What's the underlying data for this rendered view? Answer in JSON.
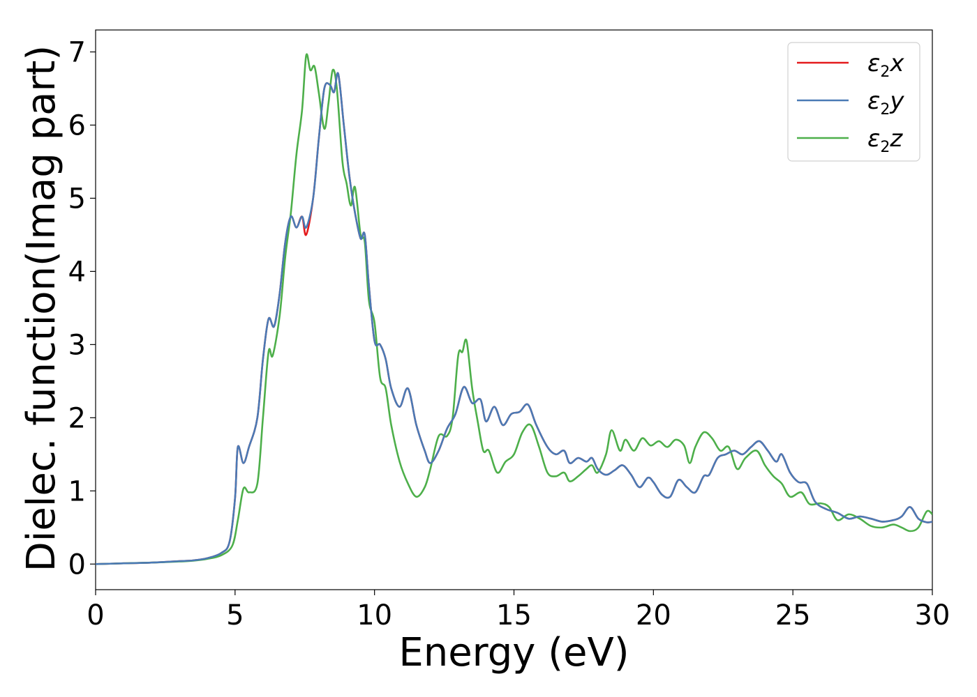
{
  "chart_data": {
    "type": "line",
    "xlabel": "Energy (eV)",
    "ylabel": "Dielec. function(Imag part)",
    "xlim": [
      0,
      30
    ],
    "ylim": [
      -0.35,
      7.3
    ],
    "xticks": [
      0,
      5,
      10,
      15,
      20,
      25,
      30
    ],
    "yticks": [
      0,
      1,
      2,
      3,
      4,
      5,
      6,
      7
    ],
    "grid": false,
    "legend_position": "top-right",
    "series": [
      {
        "name": "ε2x",
        "legend": {
          "base": "ε",
          "sub": "2",
          "axis": "x"
        },
        "color": "#e41a1c",
        "points": [
          [
            0,
            0
          ],
          [
            1,
            0.01
          ],
          [
            2,
            0.02
          ],
          [
            3,
            0.04
          ],
          [
            3.5,
            0.05
          ],
          [
            4,
            0.08
          ],
          [
            4.5,
            0.15
          ],
          [
            4.8,
            0.3
          ],
          [
            5,
            0.9
          ],
          [
            5.1,
            1.6
          ],
          [
            5.3,
            1.38
          ],
          [
            5.5,
            1.6
          ],
          [
            5.8,
            2.0
          ],
          [
            6.0,
            2.8
          ],
          [
            6.2,
            3.35
          ],
          [
            6.4,
            3.25
          ],
          [
            6.6,
            3.7
          ],
          [
            6.8,
            4.4
          ],
          [
            7.0,
            4.75
          ],
          [
            7.2,
            4.6
          ],
          [
            7.4,
            4.75
          ],
          [
            7.55,
            4.5
          ],
          [
            7.8,
            5.0
          ],
          [
            8.0,
            5.8
          ],
          [
            8.2,
            6.5
          ],
          [
            8.4,
            6.55
          ],
          [
            8.55,
            6.45
          ],
          [
            8.7,
            6.7
          ],
          [
            8.9,
            6.0
          ],
          [
            9.1,
            5.3
          ],
          [
            9.3,
            4.8
          ],
          [
            9.5,
            4.45
          ],
          [
            9.65,
            4.5
          ],
          [
            9.8,
            3.8
          ],
          [
            10.0,
            3.05
          ],
          [
            10.2,
            3.0
          ],
          [
            10.4,
            2.8
          ],
          [
            10.6,
            2.4
          ],
          [
            10.9,
            2.15
          ],
          [
            11.2,
            2.4
          ],
          [
            11.5,
            1.9
          ],
          [
            11.8,
            1.55
          ],
          [
            12.0,
            1.38
          ],
          [
            12.3,
            1.55
          ],
          [
            12.6,
            1.85
          ],
          [
            12.9,
            2.05
          ],
          [
            13.2,
            2.42
          ],
          [
            13.5,
            2.2
          ],
          [
            13.8,
            2.25
          ],
          [
            14.0,
            1.95
          ],
          [
            14.3,
            2.15
          ],
          [
            14.6,
            1.9
          ],
          [
            14.9,
            2.05
          ],
          [
            15.2,
            2.08
          ],
          [
            15.5,
            2.18
          ],
          [
            15.8,
            1.9
          ],
          [
            16.2,
            1.6
          ],
          [
            16.5,
            1.5
          ],
          [
            16.8,
            1.55
          ],
          [
            17.0,
            1.38
          ],
          [
            17.3,
            1.45
          ],
          [
            17.6,
            1.4
          ],
          [
            17.8,
            1.45
          ],
          [
            18.0,
            1.3
          ],
          [
            18.3,
            1.22
          ],
          [
            18.6,
            1.28
          ],
          [
            18.9,
            1.35
          ],
          [
            19.2,
            1.22
          ],
          [
            19.5,
            1.05
          ],
          [
            19.8,
            1.18
          ],
          [
            20.0,
            1.12
          ],
          [
            20.3,
            0.95
          ],
          [
            20.6,
            0.92
          ],
          [
            20.9,
            1.15
          ],
          [
            21.2,
            1.05
          ],
          [
            21.5,
            0.98
          ],
          [
            21.8,
            1.2
          ],
          [
            22.0,
            1.22
          ],
          [
            22.3,
            1.45
          ],
          [
            22.6,
            1.5
          ],
          [
            22.9,
            1.55
          ],
          [
            23.2,
            1.5
          ],
          [
            23.5,
            1.6
          ],
          [
            23.8,
            1.68
          ],
          [
            24.1,
            1.55
          ],
          [
            24.4,
            1.4
          ],
          [
            24.6,
            1.5
          ],
          [
            24.9,
            1.25
          ],
          [
            25.2,
            1.12
          ],
          [
            25.5,
            1.1
          ],
          [
            25.8,
            0.85
          ],
          [
            26.2,
            0.75
          ],
          [
            26.6,
            0.7
          ],
          [
            27.0,
            0.62
          ],
          [
            27.4,
            0.65
          ],
          [
            27.8,
            0.62
          ],
          [
            28.2,
            0.58
          ],
          [
            28.6,
            0.6
          ],
          [
            28.9,
            0.65
          ],
          [
            29.2,
            0.78
          ],
          [
            29.5,
            0.62
          ],
          [
            29.8,
            0.57
          ],
          [
            30,
            0.58
          ]
        ]
      },
      {
        "name": "ε2y",
        "legend": {
          "base": "ε",
          "sub": "2",
          "axis": "y"
        },
        "color": "#4a7ab5",
        "points": [
          [
            0,
            0
          ],
          [
            1,
            0.01
          ],
          [
            2,
            0.02
          ],
          [
            3,
            0.04
          ],
          [
            3.5,
            0.05
          ],
          [
            4,
            0.08
          ],
          [
            4.5,
            0.15
          ],
          [
            4.8,
            0.3
          ],
          [
            5,
            0.9
          ],
          [
            5.1,
            1.6
          ],
          [
            5.3,
            1.38
          ],
          [
            5.5,
            1.6
          ],
          [
            5.8,
            2.0
          ],
          [
            6.0,
            2.8
          ],
          [
            6.2,
            3.35
          ],
          [
            6.4,
            3.25
          ],
          [
            6.6,
            3.7
          ],
          [
            6.8,
            4.4
          ],
          [
            7.0,
            4.75
          ],
          [
            7.2,
            4.6
          ],
          [
            7.4,
            4.75
          ],
          [
            7.55,
            4.6
          ],
          [
            7.8,
            5.0
          ],
          [
            8.0,
            5.8
          ],
          [
            8.2,
            6.5
          ],
          [
            8.4,
            6.55
          ],
          [
            8.55,
            6.45
          ],
          [
            8.7,
            6.7
          ],
          [
            8.9,
            6.0
          ],
          [
            9.1,
            5.3
          ],
          [
            9.3,
            4.8
          ],
          [
            9.5,
            4.45
          ],
          [
            9.65,
            4.5
          ],
          [
            9.8,
            3.8
          ],
          [
            10.0,
            3.05
          ],
          [
            10.2,
            3.0
          ],
          [
            10.4,
            2.8
          ],
          [
            10.6,
            2.4
          ],
          [
            10.9,
            2.15
          ],
          [
            11.2,
            2.4
          ],
          [
            11.5,
            1.9
          ],
          [
            11.8,
            1.55
          ],
          [
            12.0,
            1.38
          ],
          [
            12.3,
            1.55
          ],
          [
            12.6,
            1.85
          ],
          [
            12.9,
            2.05
          ],
          [
            13.2,
            2.42
          ],
          [
            13.5,
            2.2
          ],
          [
            13.8,
            2.25
          ],
          [
            14.0,
            1.95
          ],
          [
            14.3,
            2.15
          ],
          [
            14.6,
            1.9
          ],
          [
            14.9,
            2.05
          ],
          [
            15.2,
            2.08
          ],
          [
            15.5,
            2.18
          ],
          [
            15.8,
            1.9
          ],
          [
            16.2,
            1.6
          ],
          [
            16.5,
            1.5
          ],
          [
            16.8,
            1.55
          ],
          [
            17.0,
            1.38
          ],
          [
            17.3,
            1.45
          ],
          [
            17.6,
            1.4
          ],
          [
            17.8,
            1.45
          ],
          [
            18.0,
            1.3
          ],
          [
            18.3,
            1.22
          ],
          [
            18.6,
            1.28
          ],
          [
            18.9,
            1.35
          ],
          [
            19.2,
            1.22
          ],
          [
            19.5,
            1.05
          ],
          [
            19.8,
            1.18
          ],
          [
            20.0,
            1.12
          ],
          [
            20.3,
            0.95
          ],
          [
            20.6,
            0.92
          ],
          [
            20.9,
            1.15
          ],
          [
            21.2,
            1.05
          ],
          [
            21.5,
            0.98
          ],
          [
            21.8,
            1.2
          ],
          [
            22.0,
            1.22
          ],
          [
            22.3,
            1.45
          ],
          [
            22.6,
            1.5
          ],
          [
            22.9,
            1.55
          ],
          [
            23.2,
            1.5
          ],
          [
            23.5,
            1.6
          ],
          [
            23.8,
            1.68
          ],
          [
            24.1,
            1.55
          ],
          [
            24.4,
            1.4
          ],
          [
            24.6,
            1.5
          ],
          [
            24.9,
            1.25
          ],
          [
            25.2,
            1.12
          ],
          [
            25.5,
            1.1
          ],
          [
            25.8,
            0.85
          ],
          [
            26.2,
            0.75
          ],
          [
            26.6,
            0.7
          ],
          [
            27.0,
            0.62
          ],
          [
            27.4,
            0.65
          ],
          [
            27.8,
            0.62
          ],
          [
            28.2,
            0.58
          ],
          [
            28.6,
            0.6
          ],
          [
            28.9,
            0.65
          ],
          [
            29.2,
            0.78
          ],
          [
            29.5,
            0.62
          ],
          [
            29.8,
            0.57
          ],
          [
            30,
            0.58
          ]
        ]
      },
      {
        "name": "ε2z",
        "legend": {
          "base": "ε",
          "sub": "2",
          "axis": "z"
        },
        "color": "#4daf4a",
        "points": [
          [
            0,
            0
          ],
          [
            1,
            0.01
          ],
          [
            2,
            0.02
          ],
          [
            3,
            0.035
          ],
          [
            3.5,
            0.045
          ],
          [
            4,
            0.07
          ],
          [
            4.5,
            0.12
          ],
          [
            4.9,
            0.25
          ],
          [
            5.1,
            0.6
          ],
          [
            5.3,
            1.03
          ],
          [
            5.5,
            0.98
          ],
          [
            5.8,
            1.1
          ],
          [
            6.0,
            2.0
          ],
          [
            6.2,
            2.9
          ],
          [
            6.35,
            2.85
          ],
          [
            6.6,
            3.4
          ],
          [
            6.8,
            4.2
          ],
          [
            7.0,
            4.8
          ],
          [
            7.2,
            5.6
          ],
          [
            7.4,
            6.2
          ],
          [
            7.55,
            6.95
          ],
          [
            7.7,
            6.75
          ],
          [
            7.85,
            6.8
          ],
          [
            8.0,
            6.45
          ],
          [
            8.2,
            5.95
          ],
          [
            8.35,
            6.3
          ],
          [
            8.5,
            6.75
          ],
          [
            8.65,
            6.5
          ],
          [
            8.85,
            5.5
          ],
          [
            9.0,
            5.2
          ],
          [
            9.15,
            4.9
          ],
          [
            9.3,
            5.15
          ],
          [
            9.5,
            4.5
          ],
          [
            9.65,
            4.4
          ],
          [
            9.8,
            3.6
          ],
          [
            10.0,
            3.3
          ],
          [
            10.2,
            2.55
          ],
          [
            10.4,
            2.4
          ],
          [
            10.6,
            1.9
          ],
          [
            10.9,
            1.4
          ],
          [
            11.2,
            1.1
          ],
          [
            11.5,
            0.92
          ],
          [
            11.8,
            1.05
          ],
          [
            12.0,
            1.3
          ],
          [
            12.3,
            1.75
          ],
          [
            12.6,
            1.75
          ],
          [
            12.8,
            2.0
          ],
          [
            13.0,
            2.85
          ],
          [
            13.15,
            2.9
          ],
          [
            13.3,
            3.05
          ],
          [
            13.5,
            2.4
          ],
          [
            13.7,
            1.95
          ],
          [
            13.9,
            1.55
          ],
          [
            14.1,
            1.55
          ],
          [
            14.4,
            1.25
          ],
          [
            14.7,
            1.4
          ],
          [
            15.0,
            1.5
          ],
          [
            15.3,
            1.8
          ],
          [
            15.6,
            1.9
          ],
          [
            15.9,
            1.6
          ],
          [
            16.2,
            1.25
          ],
          [
            16.5,
            1.2
          ],
          [
            16.8,
            1.25
          ],
          [
            17.0,
            1.13
          ],
          [
            17.3,
            1.2
          ],
          [
            17.6,
            1.3
          ],
          [
            17.8,
            1.35
          ],
          [
            18.0,
            1.25
          ],
          [
            18.3,
            1.5
          ],
          [
            18.5,
            1.83
          ],
          [
            18.8,
            1.55
          ],
          [
            19.0,
            1.7
          ],
          [
            19.3,
            1.55
          ],
          [
            19.6,
            1.72
          ],
          [
            19.9,
            1.62
          ],
          [
            20.2,
            1.68
          ],
          [
            20.5,
            1.6
          ],
          [
            20.8,
            1.7
          ],
          [
            21.1,
            1.62
          ],
          [
            21.3,
            1.38
          ],
          [
            21.5,
            1.6
          ],
          [
            21.8,
            1.8
          ],
          [
            22.1,
            1.72
          ],
          [
            22.4,
            1.55
          ],
          [
            22.7,
            1.6
          ],
          [
            23.0,
            1.3
          ],
          [
            23.3,
            1.45
          ],
          [
            23.7,
            1.55
          ],
          [
            24.0,
            1.35
          ],
          [
            24.3,
            1.2
          ],
          [
            24.6,
            1.1
          ],
          [
            24.9,
            0.92
          ],
          [
            25.3,
            0.98
          ],
          [
            25.6,
            0.82
          ],
          [
            26.0,
            0.83
          ],
          [
            26.3,
            0.78
          ],
          [
            26.6,
            0.6
          ],
          [
            27.0,
            0.68
          ],
          [
            27.4,
            0.62
          ],
          [
            27.8,
            0.52
          ],
          [
            28.2,
            0.5
          ],
          [
            28.6,
            0.54
          ],
          [
            28.9,
            0.5
          ],
          [
            29.2,
            0.45
          ],
          [
            29.5,
            0.5
          ],
          [
            29.8,
            0.72
          ],
          [
            30,
            0.68
          ]
        ]
      }
    ]
  }
}
